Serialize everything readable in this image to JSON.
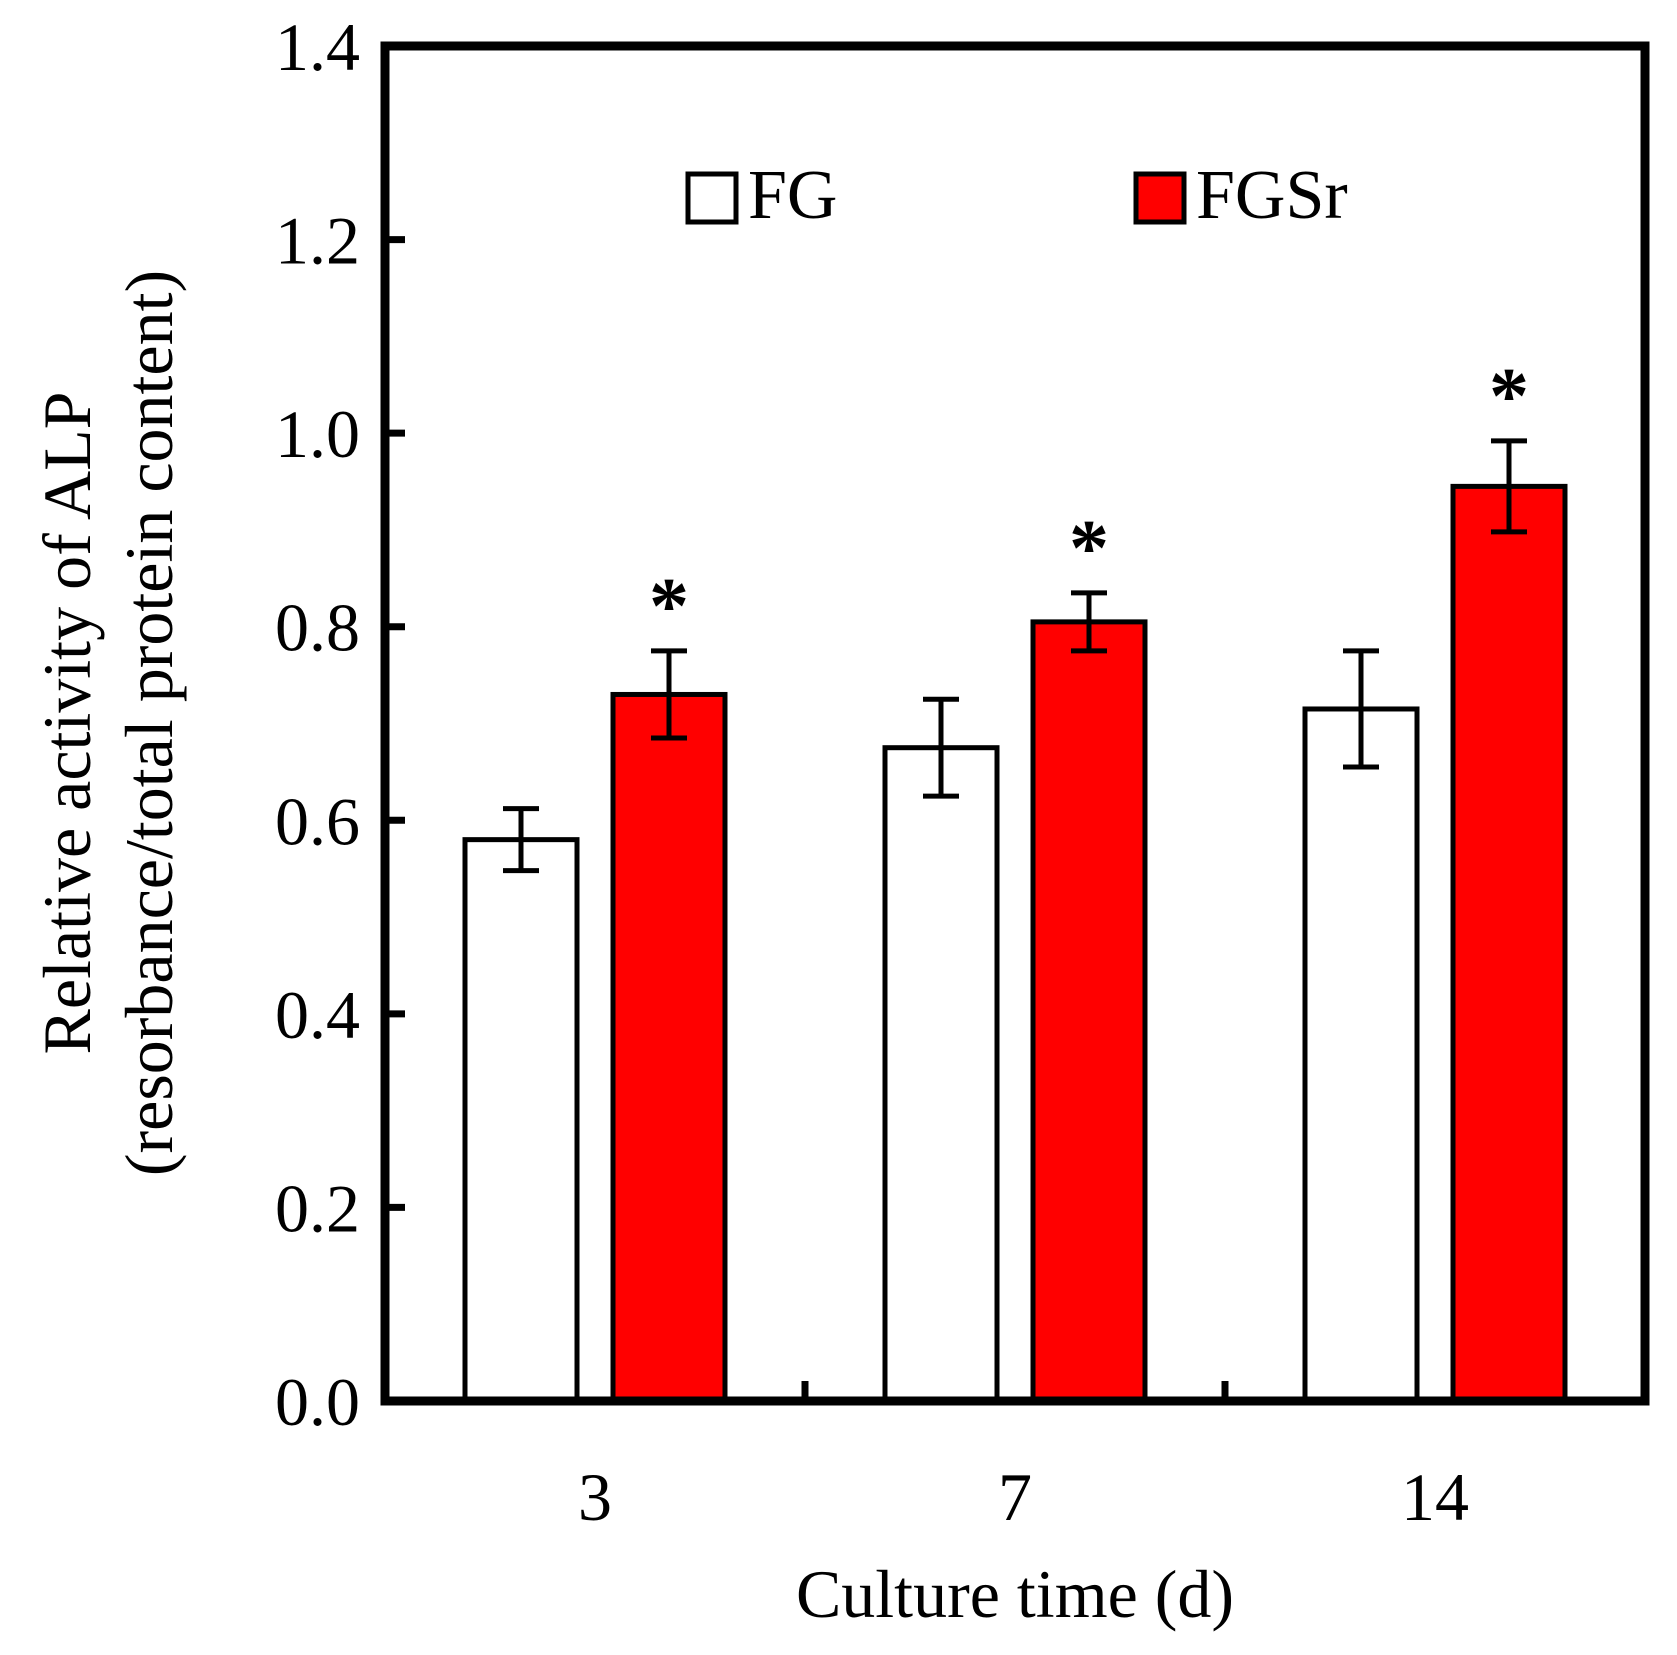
{
  "chart_data": {
    "type": "bar",
    "title": "",
    "xlabel": "Culture time (d)",
    "ylabel_line1": "Relative activity of ALP",
    "ylabel_line2": "(resorbance/total protein content)",
    "categories": [
      "3",
      "7",
      "14"
    ],
    "ylim": [
      0,
      1.4
    ],
    "yticks": [
      "0.0",
      "0.2",
      "0.4",
      "0.6",
      "0.8",
      "1.0",
      "1.2",
      "1.4"
    ],
    "grid": false,
    "legend_position": "top",
    "series": [
      {
        "name": "FG",
        "color": "#ffffff",
        "values": [
          0.58,
          0.675,
          0.715
        ],
        "errors": [
          0.032,
          0.05,
          0.06
        ]
      },
      {
        "name": "FGSr",
        "color": "#ff0000",
        "values": [
          0.73,
          0.805,
          0.945
        ],
        "errors": [
          0.045,
          0.03,
          0.047
        ]
      }
    ],
    "significance_marker": "*",
    "significant": [
      [
        false,
        false,
        false
      ],
      [
        true,
        true,
        true
      ]
    ]
  }
}
